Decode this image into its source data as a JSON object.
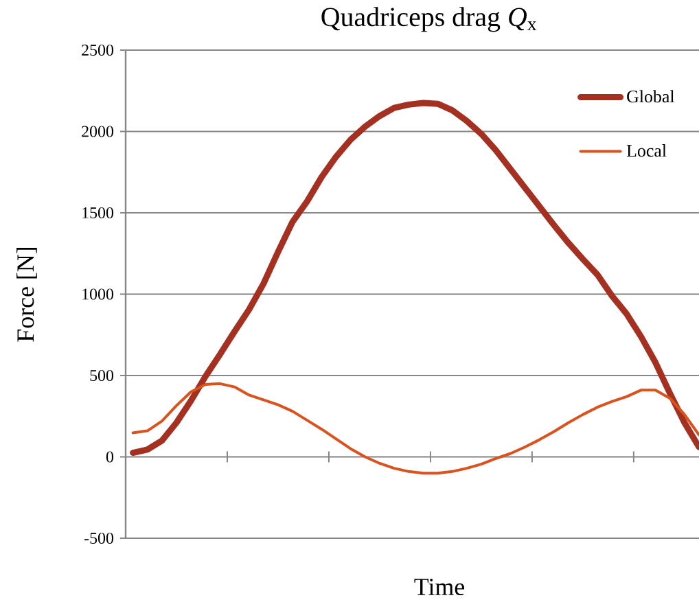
{
  "chart_data": {
    "type": "line",
    "title": "Quadriceps drag *Q*$_{x}$",
    "xlabel": "Time",
    "ylabel": "Force [N]",
    "categories": [
      null,
      null,
      null,
      null,
      null,
      null,
      null,
      null,
      null,
      null,
      null,
      null,
      null,
      null,
      null,
      null,
      null,
      null,
      null,
      null,
      null,
      null,
      null,
      null,
      null,
      null,
      null,
      null,
      null,
      null,
      null,
      null,
      null,
      null,
      null,
      null,
      null,
      null,
      null,
      null
    ],
    "series": [
      {
        "name": "Global",
        "color": "#a33020",
        "values": [
          25,
          45,
          100,
          210,
          345,
          495,
          630,
          770,
          905,
          1065,
          1260,
          1445,
          1570,
          1720,
          1845,
          1950,
          2030,
          2095,
          2145,
          2165,
          2175,
          2170,
          2130,
          2065,
          1985,
          1885,
          1770,
          1655,
          1540,
          1425,
          1315,
          1215,
          1120,
          990,
          880,
          740,
          580,
          390,
          210,
          60
        ]
      },
      {
        "name": "Local",
        "color": "#d9531e",
        "values": [
          148,
          160,
          220,
          315,
          400,
          445,
          450,
          430,
          380,
          350,
          320,
          280,
          225,
          170,
          110,
          50,
          0,
          -40,
          -70,
          -90,
          -100,
          -100,
          -90,
          -70,
          -45,
          -10,
          20,
          60,
          105,
          155,
          210,
          260,
          305,
          340,
          370,
          410,
          410,
          360,
          260,
          135
        ]
      }
    ],
    "ylim": [
      -500,
      2500
    ],
    "yticks": [
      -500,
      0,
      500,
      1000,
      1500,
      2000,
      2500
    ],
    "grid": "y",
    "legend": "top right"
  }
}
